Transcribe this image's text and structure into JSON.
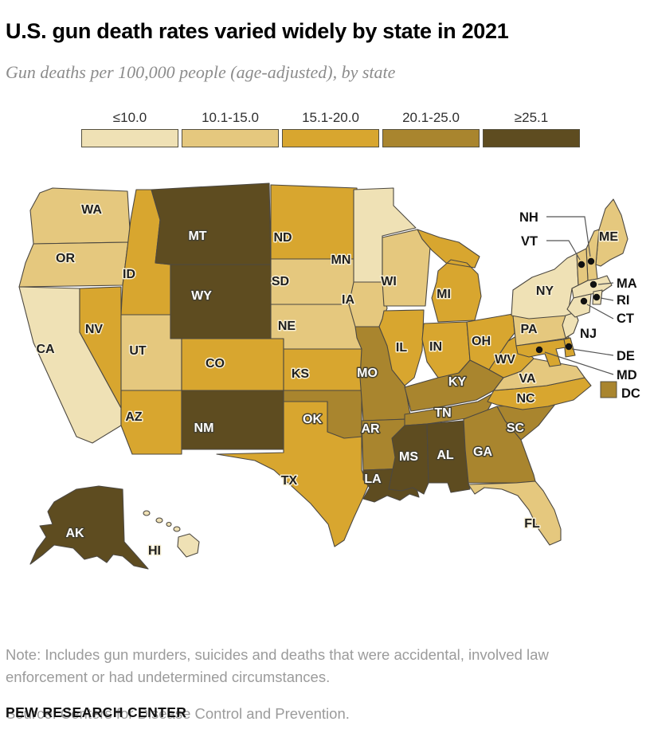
{
  "title": "U.S. gun death rates varied widely by state in 2021",
  "subtitle": "Gun deaths per 100,000 people (age-adjusted), by state",
  "note": "Note: Includes gun murders, suicides and deaths that were accidental, involved law enforcement or had undetermined circumstances.",
  "source": "Source: Centers for Disease Control and Prevention.",
  "brand": "PEW RESEARCH CENTER",
  "chart_data": {
    "type": "choropleth",
    "title": "U.S. gun death rates varied widely by state in 2021",
    "unit": "Gun deaths per 100,000 people (age-adjusted)",
    "legend_position": "top",
    "bins": [
      {
        "label": "≤10.0",
        "color": "#EFE1B5"
      },
      {
        "label": "10.1-15.0",
        "color": "#E5C87E"
      },
      {
        "label": "15.1-20.0",
        "color": "#D8A62F"
      },
      {
        "label": "20.1-25.0",
        "color": "#A9852E"
      },
      {
        "label": "≥25.1",
        "color": "#5E4C20"
      }
    ],
    "states": [
      {
        "abbr": "WA",
        "bin": "10.1-15.0"
      },
      {
        "abbr": "OR",
        "bin": "10.1-15.0"
      },
      {
        "abbr": "CA",
        "bin": "≤10.0"
      },
      {
        "abbr": "ID",
        "bin": "15.1-20.0"
      },
      {
        "abbr": "NV",
        "bin": "15.1-20.0"
      },
      {
        "abbr": "UT",
        "bin": "10.1-15.0"
      },
      {
        "abbr": "AZ",
        "bin": "15.1-20.0"
      },
      {
        "abbr": "MT",
        "bin": "≥25.1"
      },
      {
        "abbr": "WY",
        "bin": "≥25.1"
      },
      {
        "abbr": "CO",
        "bin": "15.1-20.0"
      },
      {
        "abbr": "NM",
        "bin": "≥25.1"
      },
      {
        "abbr": "ND",
        "bin": "15.1-20.0"
      },
      {
        "abbr": "SD",
        "bin": "10.1-15.0"
      },
      {
        "abbr": "NE",
        "bin": "10.1-15.0"
      },
      {
        "abbr": "KS",
        "bin": "15.1-20.0"
      },
      {
        "abbr": "OK",
        "bin": "20.1-25.0"
      },
      {
        "abbr": "TX",
        "bin": "15.1-20.0"
      },
      {
        "abbr": "MN",
        "bin": "≤10.0"
      },
      {
        "abbr": "IA",
        "bin": "10.1-15.0"
      },
      {
        "abbr": "MO",
        "bin": "20.1-25.0"
      },
      {
        "abbr": "AR",
        "bin": "20.1-25.0"
      },
      {
        "abbr": "LA",
        "bin": "≥25.1"
      },
      {
        "abbr": "WI",
        "bin": "10.1-15.0"
      },
      {
        "abbr": "IL",
        "bin": "15.1-20.0"
      },
      {
        "abbr": "MI",
        "bin": "15.1-20.0"
      },
      {
        "abbr": "IN",
        "bin": "15.1-20.0"
      },
      {
        "abbr": "OH",
        "bin": "15.1-20.0"
      },
      {
        "abbr": "KY",
        "bin": "20.1-25.0"
      },
      {
        "abbr": "TN",
        "bin": "20.1-25.0"
      },
      {
        "abbr": "MS",
        "bin": "≥25.1"
      },
      {
        "abbr": "AL",
        "bin": "≥25.1"
      },
      {
        "abbr": "GA",
        "bin": "20.1-25.0"
      },
      {
        "abbr": "SC",
        "bin": "20.1-25.0"
      },
      {
        "abbr": "FL",
        "bin": "10.1-15.0"
      },
      {
        "abbr": "NC",
        "bin": "15.1-20.0"
      },
      {
        "abbr": "VA",
        "bin": "10.1-15.0"
      },
      {
        "abbr": "WV",
        "bin": "15.1-20.0"
      },
      {
        "abbr": "PA",
        "bin": "10.1-15.0"
      },
      {
        "abbr": "NY",
        "bin": "≤10.0"
      },
      {
        "abbr": "NJ",
        "bin": "≤10.0"
      },
      {
        "abbr": "ME",
        "bin": "10.1-15.0"
      },
      {
        "abbr": "NH",
        "bin": "10.1-15.0"
      },
      {
        "abbr": "VT",
        "bin": "10.1-15.0"
      },
      {
        "abbr": "MA",
        "bin": "≤10.0"
      },
      {
        "abbr": "RI",
        "bin": "≤10.0"
      },
      {
        "abbr": "CT",
        "bin": "≤10.0"
      },
      {
        "abbr": "DE",
        "bin": "15.1-20.0"
      },
      {
        "abbr": "MD",
        "bin": "15.1-20.0"
      },
      {
        "abbr": "DC",
        "bin": "20.1-25.0"
      },
      {
        "abbr": "AK",
        "bin": "≥25.1"
      },
      {
        "abbr": "HI",
        "bin": "≤10.0"
      }
    ]
  }
}
